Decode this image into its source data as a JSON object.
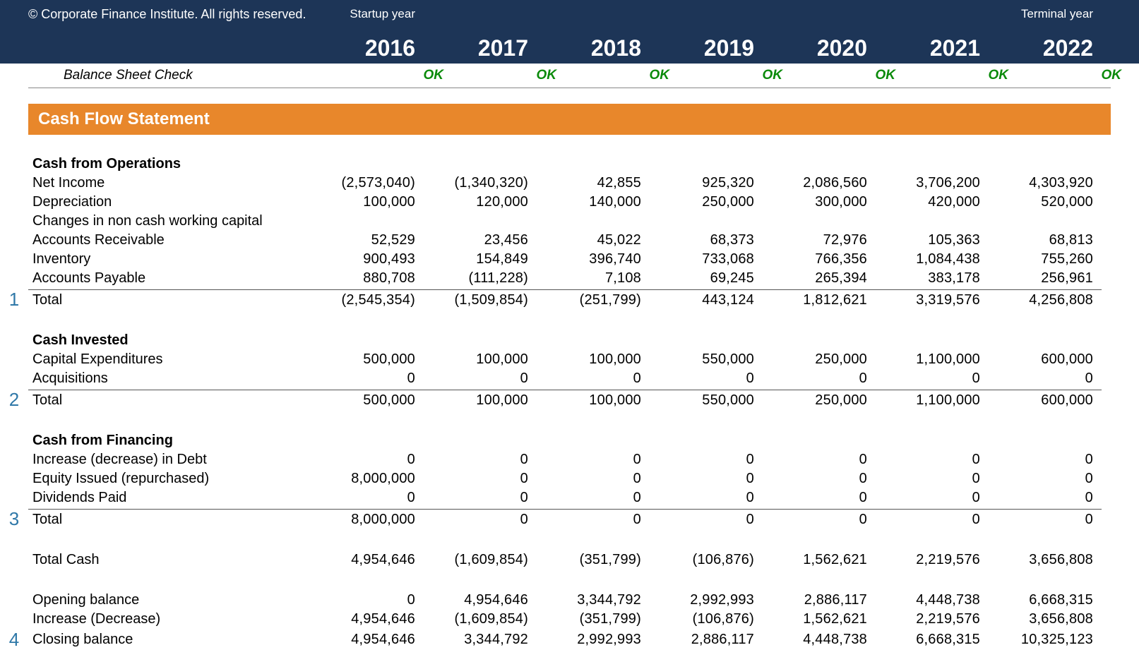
{
  "header": {
    "copyright": "© Corporate Finance Institute. All rights reserved.",
    "startup_label": "Startup year",
    "terminal_label": "Terminal year",
    "years": [
      "2016",
      "2017",
      "2018",
      "2019",
      "2020",
      "2021",
      "2022"
    ]
  },
  "check": {
    "label": "Balance Sheet Check",
    "values": [
      "OK",
      "OK",
      "OK",
      "OK",
      "OK",
      "OK",
      "OK"
    ]
  },
  "section_title": "Cash Flow Statement",
  "markers": {
    "m1": "1",
    "m2": "2",
    "m3": "3",
    "m4": "4"
  },
  "ops": {
    "heading": "Cash from Operations",
    "net_income": {
      "label": "Net Income",
      "v": [
        "(2,573,040)",
        "(1,340,320)",
        "42,855",
        "925,320",
        "2,086,560",
        "3,706,200",
        "4,303,920"
      ]
    },
    "depreciation": {
      "label": "Depreciation",
      "v": [
        "100,000",
        "120,000",
        "140,000",
        "250,000",
        "300,000",
        "420,000",
        "520,000"
      ]
    },
    "changes_label": "Changes in non cash working capital",
    "ar": {
      "label": "Accounts Receivable",
      "v": [
        "52,529",
        "23,456",
        "45,022",
        "68,373",
        "72,976",
        "105,363",
        "68,813"
      ]
    },
    "inventory": {
      "label": "Inventory",
      "v": [
        "900,493",
        "154,849",
        "396,740",
        "733,068",
        "766,356",
        "1,084,438",
        "755,260"
      ]
    },
    "ap": {
      "label": "Accounts Payable",
      "v": [
        "880,708",
        "(111,228)",
        "7,108",
        "69,245",
        "265,394",
        "383,178",
        "256,961"
      ]
    },
    "total": {
      "label": "Total",
      "v": [
        "(2,545,354)",
        "(1,509,854)",
        "(251,799)",
        "443,124",
        "1,812,621",
        "3,319,576",
        "4,256,808"
      ]
    }
  },
  "inv": {
    "heading": "Cash Invested",
    "capex": {
      "label": "Capital Expenditures",
      "v": [
        "500,000",
        "100,000",
        "100,000",
        "550,000",
        "250,000",
        "1,100,000",
        "600,000"
      ]
    },
    "acq": {
      "label": "Acquisitions",
      "v": [
        "0",
        "0",
        "0",
        "0",
        "0",
        "0",
        "0"
      ]
    },
    "total": {
      "label": "Total",
      "v": [
        "500,000",
        "100,000",
        "100,000",
        "550,000",
        "250,000",
        "1,100,000",
        "600,000"
      ]
    }
  },
  "fin": {
    "heading": "Cash from Financing",
    "debt": {
      "label": "Increase (decrease) in Debt",
      "v": [
        "0",
        "0",
        "0",
        "0",
        "0",
        "0",
        "0"
      ]
    },
    "equity": {
      "label": "Equity Issued (repurchased)",
      "v": [
        "8,000,000",
        "0",
        "0",
        "0",
        "0",
        "0",
        "0"
      ]
    },
    "div": {
      "label": "Dividends Paid",
      "v": [
        "0",
        "0",
        "0",
        "0",
        "0",
        "0",
        "0"
      ]
    },
    "total": {
      "label": "Total",
      "v": [
        "8,000,000",
        "0",
        "0",
        "0",
        "0",
        "0",
        "0"
      ]
    }
  },
  "totalcash": {
    "label": "Total Cash",
    "v": [
      "4,954,646",
      "(1,609,854)",
      "(351,799)",
      "(106,876)",
      "1,562,621",
      "2,219,576",
      "3,656,808"
    ]
  },
  "opening": {
    "label": "Opening balance",
    "v": [
      "0",
      "4,954,646",
      "3,344,792",
      "2,992,993",
      "2,886,117",
      "4,448,738",
      "6,668,315"
    ]
  },
  "incdec": {
    "label": "Increase (Decrease)",
    "v": [
      "4,954,646",
      "(1,609,854)",
      "(351,799)",
      "(106,876)",
      "1,562,621",
      "2,219,576",
      "3,656,808"
    ]
  },
  "closing": {
    "label": "Closing balance",
    "v": [
      "4,954,646",
      "3,344,792",
      "2,992,993",
      "2,886,117",
      "4,448,738",
      "6,668,315",
      "10,325,123"
    ]
  }
}
